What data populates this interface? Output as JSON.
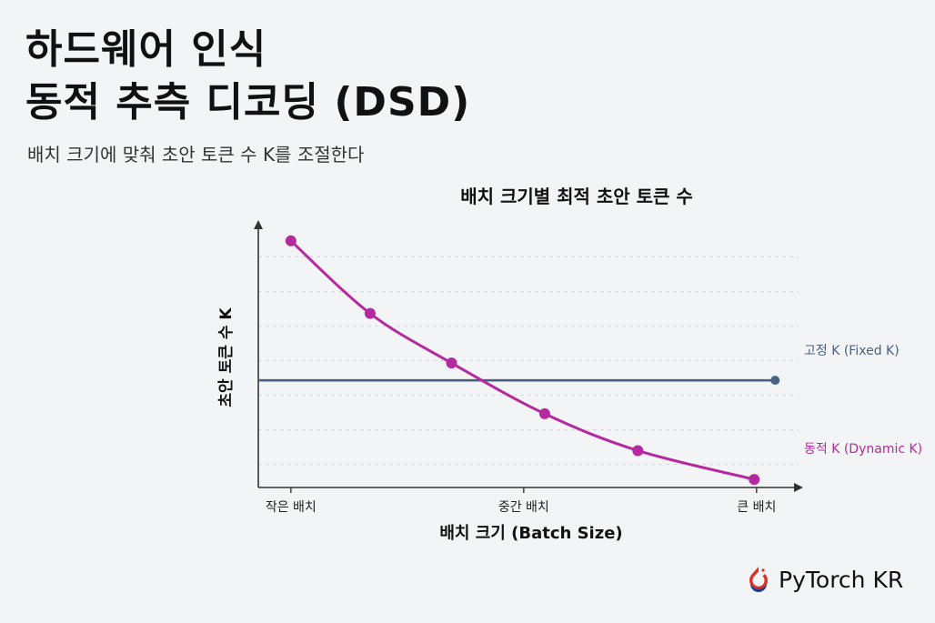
{
  "header": {
    "title_line1": "하드웨어 인식",
    "title_line2": "동적 추측 디코딩 (DSD)",
    "subtitle": "배치 크기에 맞춰 초안 토큰 수 K를 조절한다"
  },
  "brand": {
    "name": "PyTorch KR",
    "logo_icon": "pytorch-kr-logo-icon"
  },
  "chart_data": {
    "type": "line",
    "title": "배치 크기별 최적 초안 토큰 수",
    "xlabel": "배치 크기 (Batch Size)",
    "ylabel": "초안 토큰 수 K",
    "x_tick_labels": [
      "작은 배치",
      "중간 배치",
      "큰 배치"
    ],
    "x_tick_positions": [
      0,
      0.5,
      1
    ],
    "xlim": [
      -0.07,
      1.1
    ],
    "ylim": [
      0,
      1.16
    ],
    "grid": "horizontal-dashed",
    "legend": "inline-right",
    "series": [
      {
        "name": "동적 K (Dynamic K)",
        "color": "#b5299e",
        "x": [
          0,
          0.17,
          0.345,
          0.545,
          0.745,
          0.995
        ],
        "y": [
          1.07,
          0.755,
          0.54,
          0.32,
          0.16,
          0.035
        ]
      },
      {
        "name": "고정 K (Fixed K)",
        "color": "#4a6282",
        "x": [
          -0.07,
          1.04
        ],
        "y": [
          0.465,
          0.465
        ]
      }
    ]
  }
}
